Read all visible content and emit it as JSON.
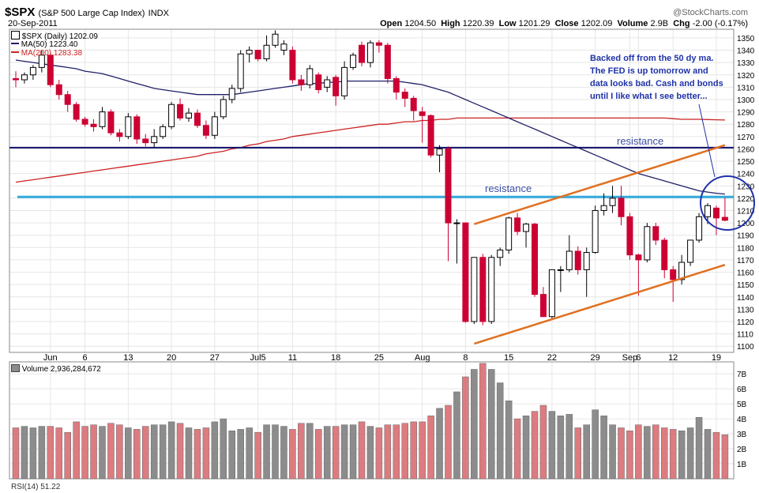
{
  "header": {
    "symbol": "$SPX",
    "name": "(S&P 500 Large Cap Index)",
    "exchange": "INDX",
    "date": "20-Sep-2011",
    "brand": "@StockCharts.com",
    "open_label": "Open",
    "open": "1204.50",
    "high_label": "High",
    "high": "1220.39",
    "low_label": "Low",
    "low": "1201.29",
    "close_label": "Close",
    "close": "1202.09",
    "volume_label": "Volume",
    "volume": "2.9B",
    "chg_label": "Chg",
    "chg": "-2.00 (-0.17%)"
  },
  "legend": {
    "price": "$SPX (Daily) 1202.09",
    "ma50": "MA(50) 1223.40",
    "ma200": "MA(200) 1283.38",
    "volume": "Volume 2,936,284,672",
    "rsi": "RSI(14) 51.22"
  },
  "annotations": {
    "note": "Backed off from the 50 dy ma.  The FED is up tomorrow and data looks bad.  Cash and bonds until I like what I see better...",
    "resistance_upper": "resistance",
    "resistance_lower": "resistance"
  },
  "colors": {
    "up": "#ffffff",
    "down": "#cc0033",
    "ma50": "#202066",
    "ma200": "#cc2222",
    "res_upper": "#10106a",
    "res_lower": "#33aadd",
    "channel": "#e07020",
    "vol_up": "#8c8c8c",
    "vol_down": "#dc7c80",
    "note": "#1f33a8",
    "circle": "#1f33a8"
  },
  "chart_data": {
    "type": "candlestick",
    "price_axis": {
      "min": 1095,
      "max": 1357,
      "ticks": [
        1100,
        1110,
        1120,
        1130,
        1140,
        1150,
        1160,
        1170,
        1180,
        1190,
        1200,
        1210,
        1220,
        1230,
        1240,
        1250,
        1260,
        1270,
        1280,
        1290,
        1300,
        1310,
        1320,
        1330,
        1340,
        1350
      ]
    },
    "x_ticks": [
      {
        "label": "Jun",
        "i": 4
      },
      {
        "label": "6",
        "i": 8
      },
      {
        "label": "13",
        "i": 13
      },
      {
        "label": "20",
        "i": 18
      },
      {
        "label": "27",
        "i": 23
      },
      {
        "label": "Jul5",
        "i": 28
      },
      {
        "label": "11",
        "i": 32
      },
      {
        "label": "18",
        "i": 37
      },
      {
        "label": "25",
        "i": 42
      },
      {
        "label": "Aug",
        "i": 47
      },
      {
        "label": "8",
        "i": 52
      },
      {
        "label": "15",
        "i": 57
      },
      {
        "label": "22",
        "i": 62
      },
      {
        "label": "29",
        "i": 67
      },
      {
        "label": "Sep",
        "i": 71
      },
      {
        "label": "6",
        "i": 72
      },
      {
        "label": "12",
        "i": 76
      },
      {
        "label": "19",
        "i": 81
      }
    ],
    "ohlc": [
      [
        1317,
        1323,
        1310,
        1316
      ],
      [
        1316,
        1322,
        1313,
        1320
      ],
      [
        1320,
        1328,
        1316,
        1326
      ],
      [
        1326,
        1340,
        1322,
        1336
      ],
      [
        1336,
        1338,
        1310,
        1312
      ],
      [
        1312,
        1316,
        1300,
        1304
      ],
      [
        1304,
        1307,
        1290,
        1296
      ],
      [
        1296,
        1298,
        1282,
        1284
      ],
      [
        1284,
        1286,
        1278,
        1280
      ],
      [
        1280,
        1284,
        1274,
        1278
      ],
      [
        1278,
        1294,
        1276,
        1290
      ],
      [
        1290,
        1292,
        1271,
        1273
      ],
      [
        1273,
        1276,
        1266,
        1270
      ],
      [
        1270,
        1289,
        1268,
        1286
      ],
      [
        1286,
        1288,
        1264,
        1268
      ],
      [
        1268,
        1272,
        1262,
        1265
      ],
      [
        1265,
        1276,
        1261,
        1270
      ],
      [
        1270,
        1280,
        1268,
        1278
      ],
      [
        1278,
        1298,
        1276,
        1296
      ],
      [
        1296,
        1301,
        1283,
        1285
      ],
      [
        1285,
        1293,
        1282,
        1289
      ],
      [
        1289,
        1292,
        1277,
        1279
      ],
      [
        1279,
        1283,
        1268,
        1271
      ],
      [
        1271,
        1290,
        1268,
        1286
      ],
      [
        1286,
        1303,
        1284,
        1300
      ],
      [
        1300,
        1312,
        1297,
        1309
      ],
      [
        1309,
        1340,
        1306,
        1337
      ],
      [
        1337,
        1343,
        1330,
        1340
      ],
      [
        1340,
        1340,
        1331,
        1333
      ],
      [
        1333,
        1352,
        1331,
        1344
      ],
      [
        1344,
        1356,
        1342,
        1353
      ],
      [
        1340,
        1348,
        1336,
        1345
      ],
      [
        1340,
        1343,
        1313,
        1316
      ],
      [
        1316,
        1320,
        1307,
        1312
      ],
      [
        1312,
        1328,
        1309,
        1325
      ],
      [
        1320,
        1322,
        1305,
        1308
      ],
      [
        1310,
        1319,
        1306,
        1316
      ],
      [
        1318,
        1320,
        1295,
        1303
      ],
      [
        1303,
        1331,
        1300,
        1326
      ],
      [
        1326,
        1338,
        1324,
        1336
      ],
      [
        1344,
        1347,
        1327,
        1330
      ],
      [
        1330,
        1348,
        1326,
        1346
      ],
      [
        1346,
        1348,
        1338,
        1344
      ],
      [
        1344,
        1346,
        1313,
        1317
      ],
      [
        1317,
        1319,
        1300,
        1306
      ],
      [
        1306,
        1309,
        1294,
        1301
      ],
      [
        1301,
        1303,
        1283,
        1291
      ],
      [
        1290,
        1294,
        1265,
        1287
      ],
      [
        1287,
        1288,
        1253,
        1255
      ],
      [
        1255,
        1263,
        1241,
        1260
      ],
      [
        1260,
        1262,
        1169,
        1200
      ],
      [
        1200,
        1203,
        1167,
        1200
      ],
      [
        1200,
        1200,
        1119,
        1120
      ],
      [
        1120,
        1172,
        1118,
        1172
      ],
      [
        1172,
        1175,
        1117,
        1120
      ],
      [
        1120,
        1174,
        1118,
        1172
      ],
      [
        1172,
        1180,
        1165,
        1178
      ],
      [
        1178,
        1205,
        1175,
        1204
      ],
      [
        1204,
        1208,
        1190,
        1193
      ],
      [
        1193,
        1200,
        1180,
        1199
      ],
      [
        1199,
        1200,
        1140,
        1142
      ],
      [
        1142,
        1148,
        1124,
        1124
      ],
      [
        1124,
        1162,
        1122,
        1162
      ],
      [
        1162,
        1165,
        1144,
        1162
      ],
      [
        1162,
        1190,
        1160,
        1177
      ],
      [
        1177,
        1181,
        1158,
        1162
      ],
      [
        1162,
        1180,
        1140,
        1176
      ],
      [
        1176,
        1214,
        1175,
        1210
      ],
      [
        1210,
        1224,
        1206,
        1214
      ],
      [
        1214,
        1230,
        1208,
        1220
      ],
      [
        1220,
        1230,
        1198,
        1205
      ],
      [
        1205,
        1208,
        1170,
        1174
      ],
      [
        1174,
        1175,
        1141,
        1170
      ],
      [
        1170,
        1200,
        1168,
        1197
      ],
      [
        1197,
        1200,
        1182,
        1186
      ],
      [
        1186,
        1188,
        1155,
        1162
      ],
      [
        1162,
        1165,
        1136,
        1154
      ],
      [
        1154,
        1174,
        1150,
        1168
      ],
      [
        1168,
        1185,
        1165,
        1186
      ],
      [
        1186,
        1208,
        1184,
        1205
      ],
      [
        1205,
        1216,
        1199,
        1214
      ],
      [
        1212,
        1214,
        1190,
        1204
      ],
      [
        1204.5,
        1220.39,
        1201.29,
        1202.09
      ]
    ],
    "ma50": [
      1332,
      1331,
      1330,
      1329,
      1328,
      1327,
      1326,
      1325,
      1323,
      1322,
      1321,
      1319,
      1317,
      1315,
      1313,
      1311,
      1309,
      1308,
      1307,
      1306,
      1305,
      1304,
      1304,
      1304,
      1304,
      1304,
      1305,
      1306,
      1307,
      1308,
      1309,
      1310,
      1311,
      1312,
      1313,
      1313,
      1314,
      1314,
      1315,
      1315,
      1315,
      1315,
      1315,
      1315,
      1315,
      1314,
      1313,
      1312,
      1310,
      1308,
      1306,
      1303,
      1300,
      1297,
      1294,
      1291,
      1288,
      1285,
      1282,
      1279,
      1276,
      1273,
      1270,
      1267,
      1264,
      1261,
      1258,
      1255,
      1252,
      1249,
      1246,
      1243,
      1240,
      1238,
      1236,
      1234,
      1232,
      1230,
      1228,
      1226,
      1225,
      1224,
      1223.4
    ],
    "ma200": [
      1233,
      1234,
      1235,
      1236,
      1237,
      1238,
      1239,
      1240,
      1241,
      1242,
      1243,
      1244,
      1245,
      1246,
      1247,
      1248,
      1249,
      1250,
      1251,
      1252,
      1253,
      1254,
      1256,
      1257,
      1258,
      1260,
      1261,
      1263,
      1264,
      1266,
      1267,
      1268,
      1270,
      1271,
      1272,
      1273,
      1274,
      1275,
      1276,
      1277,
      1278,
      1279,
      1280,
      1280,
      1281,
      1282,
      1282,
      1283,
      1283,
      1284,
      1284,
      1285,
      1285,
      1285,
      1285,
      1285,
      1285,
      1285,
      1285,
      1285,
      1285,
      1285,
      1285,
      1285,
      1285,
      1285,
      1285,
      1285,
      1285,
      1285,
      1285,
      1285,
      1285,
      1285,
      1285,
      1285,
      1284.5,
      1284,
      1284,
      1284,
      1283.8,
      1283.6,
      1283.38
    ],
    "resistance_upper": 1261,
    "resistance_lower": 1221,
    "channel_upper": {
      "from": [
        53,
        1199
      ],
      "to": [
        82,
        1263
      ]
    },
    "channel_lower": {
      "from": [
        53,
        1102
      ],
      "to": [
        82,
        1166
      ]
    },
    "volume_axis": {
      "ticks": [
        {
          "v": 1,
          "label": "1B"
        },
        {
          "v": 2,
          "label": "2B"
        },
        {
          "v": 3,
          "label": "3B"
        },
        {
          "v": 4,
          "label": "4B"
        },
        {
          "v": 5,
          "label": "5B"
        },
        {
          "v": 6,
          "label": "6B"
        },
        {
          "v": 7,
          "label": "7B"
        }
      ],
      "max": 7.8
    },
    "volume": [
      3.4,
      3.5,
      3.4,
      3.5,
      3.5,
      3.4,
      3.1,
      3.8,
      3.5,
      3.6,
      3.5,
      3.7,
      3.6,
      3.4,
      3.3,
      3.5,
      3.6,
      3.6,
      3.8,
      3.7,
      3.4,
      3.3,
      3.4,
      3.8,
      4.0,
      3.2,
      3.3,
      3.4,
      3.1,
      3.6,
      3.6,
      3.5,
      3.3,
      3.7,
      3.7,
      3.3,
      3.5,
      3.5,
      3.6,
      3.6,
      3.8,
      3.5,
      3.4,
      3.6,
      3.6,
      3.7,
      3.8,
      3.8,
      4.2,
      4.7,
      4.9,
      5.8,
      6.8,
      7.3,
      7.7,
      7.3,
      6.4,
      5.2,
      4.0,
      4.2,
      4.5,
      4.9,
      4.5,
      4.2,
      4.3,
      3.4,
      3.6,
      4.6,
      4.2,
      3.6,
      3.4,
      3.2,
      3.6,
      3.5,
      3.6,
      3.4,
      3.3,
      3.2,
      3.4,
      4.1,
      3.3,
      3.1,
      2.94
    ]
  }
}
